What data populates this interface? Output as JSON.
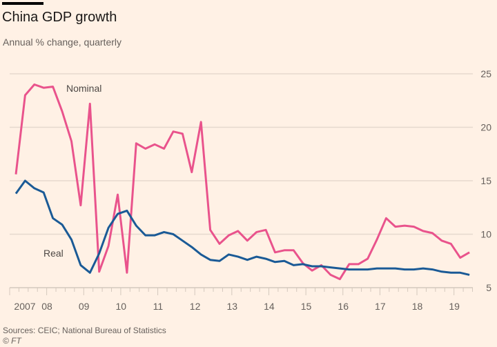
{
  "header": {
    "title": "China GDP growth",
    "subtitle": "Annual % change, quarterly"
  },
  "footer": {
    "source": "Sources: CEIC; National Bureau of Statistics",
    "credit": "© FT"
  },
  "colors": {
    "nominal": "#e9538c",
    "real": "#1a5a96",
    "grid": "#e6d9ce",
    "background": "#fff1e5"
  },
  "chart_data": {
    "type": "line",
    "title": "China GDP growth",
    "subtitle": "Annual % change, quarterly",
    "xlabel": "",
    "ylabel": "",
    "ylim": [
      5,
      25
    ],
    "yticks": [
      5,
      10,
      15,
      20,
      25
    ],
    "ytick_position": "right",
    "xtick_labels": [
      "2007",
      "08",
      "09",
      "10",
      "11",
      "12",
      "13",
      "14",
      "15",
      "16",
      "17",
      "18",
      "19"
    ],
    "grid": true,
    "x": [
      "2007Q1",
      "2007Q2",
      "2007Q3",
      "2007Q4",
      "2008Q1",
      "2008Q2",
      "2008Q3",
      "2008Q4",
      "2009Q1",
      "2009Q2",
      "2009Q3",
      "2009Q4",
      "2010Q1",
      "2010Q2",
      "2010Q3",
      "2010Q4",
      "2011Q1",
      "2011Q2",
      "2011Q3",
      "2011Q4",
      "2012Q1",
      "2012Q2",
      "2012Q3",
      "2012Q4",
      "2013Q1",
      "2013Q2",
      "2013Q3",
      "2013Q4",
      "2014Q1",
      "2014Q2",
      "2014Q3",
      "2014Q4",
      "2015Q1",
      "2015Q2",
      "2015Q3",
      "2015Q4",
      "2016Q1",
      "2016Q2",
      "2016Q3",
      "2016Q4",
      "2017Q1",
      "2017Q2",
      "2017Q3",
      "2017Q4",
      "2018Q1",
      "2018Q2",
      "2018Q3",
      "2018Q4",
      "2019Q1",
      "2019Q2"
    ],
    "series": [
      {
        "name": "Nominal",
        "values": [
          15.6,
          23.0,
          24.0,
          23.7,
          23.8,
          21.5,
          18.7,
          12.7,
          22.2,
          6.5,
          8.9,
          13.7,
          6.4,
          18.5,
          18.0,
          18.4,
          18.0,
          19.6,
          19.4,
          15.8,
          20.5,
          10.4,
          9.1,
          9.9,
          10.3,
          9.4,
          10.2,
          10.4,
          8.3,
          8.5,
          8.5,
          7.3,
          6.6,
          7.1,
          6.2,
          5.8,
          7.2,
          7.2,
          7.7,
          9.5,
          11.5,
          10.7,
          10.8,
          10.7,
          10.3,
          10.1,
          9.4,
          9.1,
          7.8,
          8.3
        ]
      },
      {
        "name": "Real",
        "values": [
          13.8,
          15.0,
          14.3,
          13.9,
          11.5,
          10.9,
          9.5,
          7.1,
          6.4,
          8.2,
          10.6,
          11.9,
          12.2,
          10.8,
          9.9,
          9.9,
          10.2,
          10.0,
          9.4,
          8.8,
          8.1,
          7.6,
          7.5,
          8.1,
          7.9,
          7.6,
          7.9,
          7.7,
          7.4,
          7.5,
          7.1,
          7.2,
          7.0,
          7.0,
          6.9,
          6.8,
          6.7,
          6.7,
          6.7,
          6.8,
          6.8,
          6.8,
          6.7,
          6.7,
          6.8,
          6.7,
          6.5,
          6.4,
          6.4,
          6.2
        ]
      }
    ],
    "annotations": [
      {
        "text": "Nominal",
        "series": "Nominal"
      },
      {
        "text": "Real",
        "series": "Real"
      }
    ]
  }
}
